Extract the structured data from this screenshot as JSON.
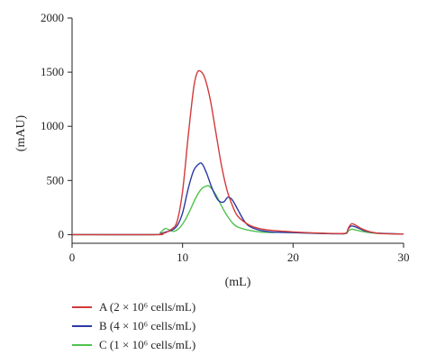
{
  "chart_data": {
    "type": "line",
    "title": "",
    "xlabel": "(mL)",
    "ylabel": "(mAU)",
    "xlim": [
      0,
      30
    ],
    "ylim": [
      -80,
      2000
    ],
    "xticks": [
      "0",
      "10",
      "20",
      "30"
    ],
    "yticks": [
      "0",
      "500",
      "1000",
      "1500",
      "2000"
    ],
    "grid": false,
    "legend_position": "bottom-left",
    "series": [
      {
        "name": "A (2 × 10⁶ cells/mL)",
        "color": "#d33a3a",
        "x": [
          0,
          7.5,
          8.0,
          8.5,
          9.0,
          9.5,
          10.0,
          10.5,
          11.0,
          11.3,
          11.6,
          12.0,
          12.5,
          13.0,
          13.5,
          14.0,
          14.5,
          15.0,
          16.0,
          17.0,
          18.0,
          20.0,
          22.0,
          24.0,
          24.8,
          25.0,
          25.3,
          25.7,
          26.2,
          27.0,
          28.0,
          30.0
        ],
        "y": [
          0,
          0,
          5,
          20,
          50,
          120,
          400,
          900,
          1350,
          1490,
          1510,
          1450,
          1250,
          950,
          650,
          420,
          270,
          170,
          90,
          55,
          40,
          25,
          15,
          10,
          15,
          60,
          100,
          85,
          55,
          25,
          10,
          5
        ]
      },
      {
        "name": "B (4 × 10⁶ cells/mL)",
        "color": "#2a3aa5",
        "x": [
          0,
          7.5,
          8.0,
          8.5,
          9.0,
          9.5,
          10.0,
          10.5,
          11.0,
          11.5,
          11.8,
          12.2,
          12.7,
          13.2,
          13.7,
          14.1,
          14.5,
          15.0,
          15.5,
          16.0,
          17.0,
          18.0,
          20.0,
          22.0,
          24.0,
          24.8,
          25.0,
          25.3,
          25.8,
          26.5,
          27.5,
          30.0
        ],
        "y": [
          0,
          0,
          8,
          25,
          40,
          80,
          200,
          420,
          590,
          655,
          650,
          560,
          420,
          320,
          300,
          345,
          320,
          230,
          140,
          80,
          40,
          25,
          18,
          12,
          8,
          12,
          55,
          80,
          65,
          35,
          15,
          5
        ]
      },
      {
        "name": "C (1 × 10⁶ cells/mL)",
        "color": "#4ec24e",
        "x": [
          0,
          7.5,
          8.0,
          8.4,
          8.8,
          9.2,
          9.7,
          10.2,
          10.7,
          11.2,
          11.7,
          12.2,
          12.5,
          13.0,
          13.5,
          14.0,
          14.5,
          15.0,
          16.0,
          17.0,
          18.0,
          19.0,
          20.0,
          22.0,
          24.0,
          24.8,
          25.0,
          25.3,
          25.8,
          26.5,
          27.5,
          30.0
        ],
        "y": [
          0,
          0,
          20,
          55,
          45,
          30,
          60,
          130,
          230,
          340,
          420,
          450,
          440,
          370,
          270,
          180,
          110,
          70,
          40,
          25,
          20,
          22,
          18,
          12,
          8,
          10,
          35,
          50,
          40,
          25,
          12,
          5
        ]
      }
    ]
  }
}
